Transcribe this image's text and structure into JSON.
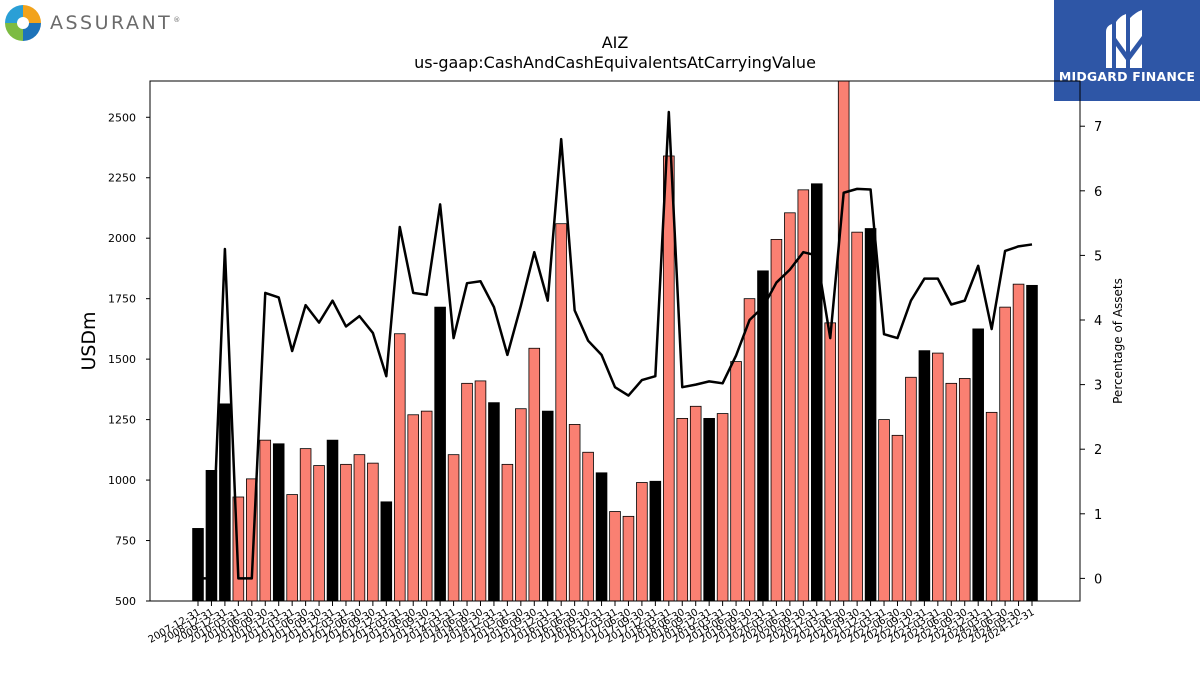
{
  "brand": {
    "name": "ASSURANT",
    "trademark": "®",
    "logo_icon": "assurant-pinwheel-icon"
  },
  "partner": {
    "name": "MIDGARD FINANCE",
    "logo_icon": "midgard-m-icon"
  },
  "colors": {
    "bar_highlight": "#000000",
    "bar_regular": "#fa8072",
    "line": "#000000",
    "partner_bg": "#2e56a6"
  },
  "chart_data": {
    "type": "bar",
    "title": "AIZ",
    "subtitle": "us-gaap:CashAndCashEquivalentsAtCarryingValue",
    "ylabel": "USDm",
    "y2label": "Percentage of Assets",
    "ylim": [
      500,
      2650
    ],
    "y2lim": [
      -0.35,
      7.7
    ],
    "yticks": [
      500,
      750,
      1000,
      1250,
      1500,
      1750,
      2000,
      2250,
      2500
    ],
    "y2ticks": [
      0,
      1,
      2,
      3,
      4,
      5,
      6,
      7
    ],
    "grid": false,
    "categories": [
      "2007-12-31",
      "2008-12-31",
      "2009-12-31",
      "2010-03-31",
      "2010-06-30",
      "2010-09-30",
      "2010-12-31",
      "2011-03-31",
      "2011-06-30",
      "2011-09-30",
      "2011-12-31",
      "2012-03-31",
      "2012-06-30",
      "2012-09-30",
      "2012-12-31",
      "2013-03-31",
      "2013-06-30",
      "2013-09-30",
      "2013-12-31",
      "2014-03-31",
      "2014-06-30",
      "2014-09-30",
      "2014-12-31",
      "2015-03-31",
      "2015-06-30",
      "2015-09-30",
      "2015-12-31",
      "2016-03-31",
      "2016-06-30",
      "2016-09-30",
      "2016-12-31",
      "2017-03-31",
      "2017-06-30",
      "2017-09-30",
      "2017-12-31",
      "2018-03-31",
      "2018-06-30",
      "2018-09-30",
      "2018-12-31",
      "2019-03-31",
      "2019-06-30",
      "2019-09-30",
      "2019-12-31",
      "2020-03-31",
      "2020-06-30",
      "2020-09-30",
      "2020-12-31",
      "2021-03-31",
      "2021-06-30",
      "2021-09-30",
      "2021-12-31",
      "2022-03-31",
      "2022-06-30",
      "2022-09-30",
      "2022-12-31",
      "2023-03-31",
      "2023-06-30",
      "2023-09-30",
      "2023-12-31",
      "2024-03-31",
      "2024-06-30",
      "2024-09-30",
      "2024-12-31"
    ],
    "series": [
      {
        "kind": "bar",
        "values": [
          800,
          1040,
          1315,
          930,
          1005,
          1165,
          1150,
          940,
          1130,
          1060,
          1165,
          1065,
          1105,
          1070,
          910,
          1605,
          1270,
          1285,
          1715,
          1105,
          1400,
          1410,
          1320,
          1065,
          1295,
          1545,
          1285,
          2060,
          1230,
          1115,
          1030,
          870,
          850,
          990,
          995,
          2340,
          1255,
          1305,
          1255,
          1275,
          1490,
          1750,
          1865,
          1995,
          2105,
          2200,
          2225,
          1650,
          2660,
          2025,
          2040,
          1250,
          1185,
          1425,
          1535,
          1525,
          1400,
          1420,
          1625,
          1280,
          1715,
          1810,
          1805
        ],
        "highlight_year_end": [
          true,
          true,
          true,
          false,
          false,
          false,
          true,
          false,
          false,
          false,
          true,
          false,
          false,
          false,
          true,
          false,
          false,
          false,
          true,
          false,
          false,
          false,
          true,
          false,
          false,
          false,
          true,
          false,
          false,
          false,
          true,
          false,
          false,
          false,
          true,
          false,
          false,
          false,
          true,
          false,
          false,
          false,
          true,
          false,
          false,
          false,
          true,
          false,
          false,
          false,
          true,
          false,
          false,
          false,
          true,
          false,
          false,
          false,
          true,
          false,
          false,
          false,
          true
        ]
      },
      {
        "kind": "line",
        "axis": "right",
        "values": [
          0.0,
          0.0,
          5.1,
          0.0,
          0.0,
          4.42,
          4.35,
          3.52,
          4.23,
          3.96,
          4.3,
          3.9,
          4.06,
          3.8,
          3.13,
          5.44,
          4.42,
          4.39,
          5.79,
          3.72,
          4.57,
          4.6,
          4.2,
          3.46,
          4.22,
          5.05,
          4.3,
          6.8,
          4.15,
          3.68,
          3.46,
          2.96,
          2.83,
          3.07,
          3.13,
          7.22,
          2.96,
          3.0,
          3.05,
          3.02,
          3.45,
          4.0,
          4.2,
          4.58,
          4.78,
          5.05,
          5.0,
          3.72,
          5.97,
          6.03,
          6.02,
          3.78,
          3.72,
          4.3,
          4.64,
          4.64,
          4.24,
          4.3,
          4.84,
          3.86,
          5.07,
          5.14,
          5.17
        ]
      }
    ]
  }
}
